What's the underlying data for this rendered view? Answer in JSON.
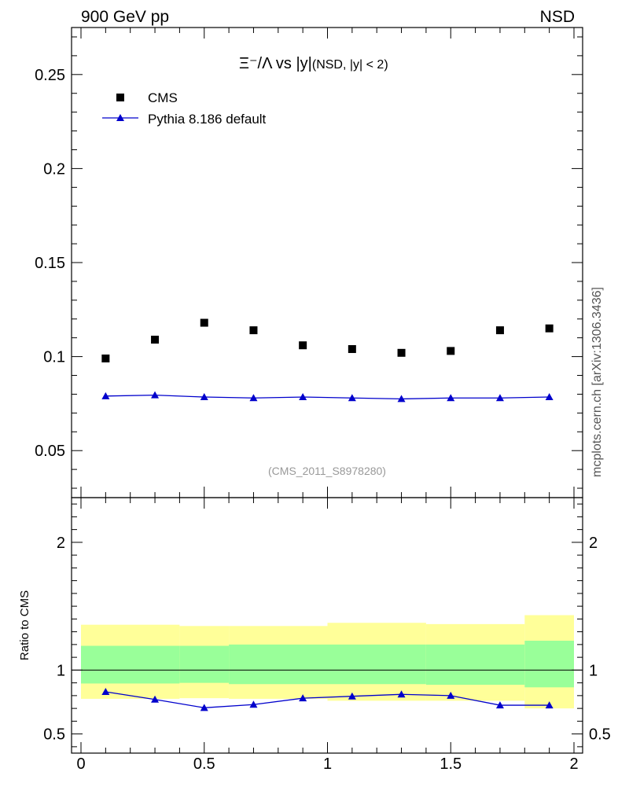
{
  "header": {
    "left": "900 GeV pp",
    "right": "NSD"
  },
  "side_label": "mcplots.cern.ch [arXiv:1306.3436]",
  "watermark": "(CMS_2011_S8978280)",
  "chart_data": [
    {
      "type": "scatter",
      "panel": "main",
      "title": "Ξ⁻/Λ vs |y|",
      "title_suffix": "(NSD, |y| < 2)",
      "xlim": [
        0,
        2
      ],
      "ylim": [
        0.025,
        0.275
      ],
      "ylabel": "",
      "yticks": [
        0.05,
        0.1,
        0.15,
        0.2,
        0.25
      ],
      "yticklabels": [
        "0.05",
        "0.1",
        "0.15",
        "0.2",
        "0.25"
      ],
      "x": [
        0.1,
        0.3,
        0.5,
        0.7,
        0.9,
        1.1,
        1.3,
        1.5,
        1.7,
        1.9
      ],
      "legend_position": "top-left",
      "series": [
        {
          "name": "CMS",
          "marker": "square",
          "color": "#000000",
          "values": [
            0.099,
            0.109,
            0.118,
            0.114,
            0.106,
            0.104,
            0.102,
            0.103,
            0.114,
            0.115
          ]
        },
        {
          "name": "Pythia 8.186 default",
          "marker": "triangle",
          "color": "#0000cc",
          "values": [
            0.079,
            0.0795,
            0.0785,
            0.078,
            0.0785,
            0.078,
            0.0775,
            0.078,
            0.078,
            0.0785
          ]
        }
      ]
    },
    {
      "type": "line",
      "panel": "ratio",
      "ylabel": "Ratio to CMS",
      "xlim": [
        0,
        2
      ],
      "ylim": [
        0.35,
        2.35
      ],
      "xticks": [
        0,
        0.5,
        1,
        1.5,
        2
      ],
      "xticklabels": [
        "0",
        "0.5",
        "1",
        "1.5",
        "2"
      ],
      "yticks": [
        0.5,
        1,
        2
      ],
      "yticklabels": [
        "0.5",
        "1",
        "2"
      ],
      "reference_line": 1,
      "bands": {
        "bins": [
          0,
          0.4,
          0.6,
          1.0,
          1.4,
          1.8,
          2.0
        ],
        "yellow": [
          [
            0.775,
            1.355
          ],
          [
            0.78,
            1.345
          ],
          [
            0.775,
            1.345
          ],
          [
            0.76,
            1.37
          ],
          [
            0.76,
            1.36
          ],
          [
            0.7,
            1.43
          ]
        ],
        "green": [
          [
            0.895,
            1.19
          ],
          [
            0.9,
            1.19
          ],
          [
            0.89,
            1.2
          ],
          [
            0.89,
            1.2
          ],
          [
            0.885,
            1.2
          ],
          [
            0.865,
            1.23
          ]
        ],
        "colors": {
          "yellow": "#ffff99",
          "green": "#99ff99"
        }
      },
      "x": [
        0.1,
        0.3,
        0.5,
        0.7,
        0.9,
        1.1,
        1.3,
        1.5,
        1.7,
        1.9
      ],
      "series": [
        {
          "name": "Pythia 8.186 default",
          "color": "#0000cc",
          "values": [
            0.83,
            0.77,
            0.705,
            0.73,
            0.78,
            0.795,
            0.81,
            0.8,
            0.725,
            0.725
          ]
        }
      ]
    }
  ]
}
